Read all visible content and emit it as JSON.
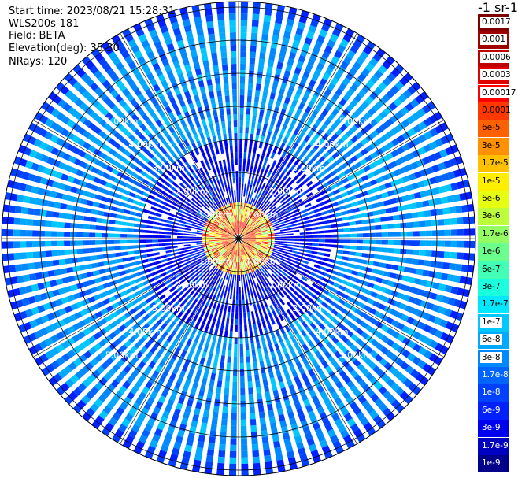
{
  "info": {
    "start_time": "Start time: 2023/08/21 15:28:31",
    "instrument": "WLS200s-181",
    "field": "Field: BETA",
    "elevation": "Elevation(deg): 35.30",
    "nrays": "NRays: 120"
  },
  "unit_label": "-1 sr-1",
  "range_ring_labels": [
    "1.00km",
    "2.00km",
    "3.00km",
    "4.00km",
    "5.00km"
  ],
  "legend": {
    "entries": [
      {
        "label": "0.0017",
        "color": "#800000"
      },
      {
        "label": "0.001",
        "color": "#a00000"
      },
      {
        "label": "0.0006",
        "color": "#c00000"
      },
      {
        "label": "0.0003",
        "color": "#e00000"
      },
      {
        "label": "0.00017",
        "color": "#ff0000"
      },
      {
        "label": "0.0001",
        "color": "#ff3800"
      },
      {
        "label": "6e-5",
        "color": "#ff6000"
      },
      {
        "label": "3e-5",
        "color": "#ff9000"
      },
      {
        "label": "1.7e-5",
        "color": "#ffc000"
      },
      {
        "label": "1e-5",
        "color": "#ffee00"
      },
      {
        "label": "6e-6",
        "color": "#e6ff10"
      },
      {
        "label": "3e-6",
        "color": "#bcff3a"
      },
      {
        "label": "1.7e-6",
        "color": "#94ff63"
      },
      {
        "label": "1e-6",
        "color": "#6bff8c"
      },
      {
        "label": "6e-7",
        "color": "#42ffb5"
      },
      {
        "label": "3e-7",
        "color": "#1affdd"
      },
      {
        "label": "1.7e-7",
        "color": "#00e8ff"
      },
      {
        "label": "1e-7",
        "color": "#00c8ff"
      },
      {
        "label": "6e-8",
        "color": "#00a8ff"
      },
      {
        "label": "3e-8",
        "color": "#0088ff"
      },
      {
        "label": "1.7e-8",
        "color": "#0064ff"
      },
      {
        "label": "1e-8",
        "color": "#0040ff"
      },
      {
        "label": "6e-9",
        "color": "#0020ff"
      },
      {
        "label": "3e-9",
        "color": "#0000f0"
      },
      {
        "label": "1.7e-9",
        "color": "#0000c0"
      },
      {
        "label": "1e-9",
        "color": "#00008a"
      }
    ]
  }
}
